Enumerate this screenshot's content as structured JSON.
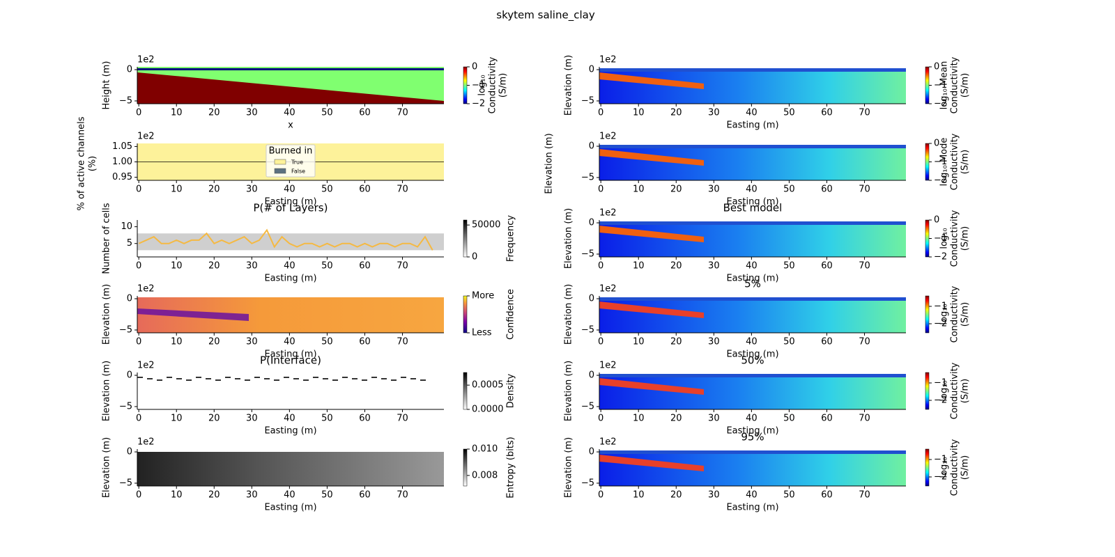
{
  "title": "skytem saline_clay",
  "chart_data": [
    {
      "type": "heatmap",
      "cmap": "jet",
      "ylabel": "Height (m)",
      "xlabel": "x",
      "offset_text": "1e2",
      "xlim": [
        -0.4,
        81
      ],
      "xticks": [
        0,
        10,
        20,
        30,
        40,
        50,
        60,
        70
      ],
      "ylim": [
        -5.45,
        0.45
      ],
      "yticks": [
        0,
        {
          "value": -5,
          "label": "−5"
        }
      ],
      "clim": [
        -2,
        0
      ],
      "cticks": [
        0,
        {
          "value": -1,
          "label": "−1"
        },
        {
          "value": -2,
          "label": "−2"
        }
      ],
      "clabel": [
        "log₁₀",
        "Conductivity",
        "(S/m)"
      ]
    },
    {
      "type": "heatmap",
      "cmap": "burned",
      "ylabel": [
        "% of active channels",
        "(%)"
      ],
      "xlabel": "Easting (m)",
      "offset_text": "1e2",
      "xlim": [
        -0.4,
        81
      ],
      "xticks": [
        0,
        10,
        20,
        30,
        40,
        50,
        60,
        70
      ],
      "ylim": [
        0.94,
        1.06
      ],
      "yticks": [
        {
          "value": 0.95,
          "label": "0.95"
        },
        {
          "value": 1.0,
          "label": "1.00"
        },
        {
          "value": 1.05,
          "label": "1.05"
        }
      ],
      "legend": {
        "title": "Burned in",
        "entries": [
          {
            "name": "True",
            "color": "#fdf29a"
          },
          {
            "name": "False",
            "color": "#5d7180"
          }
        ]
      }
    },
    {
      "type": "line",
      "cmap": "Greys",
      "title": "P(# of Layers)",
      "ylabel": "Number of cells",
      "xlabel": "Easting (m)",
      "xlim": [
        -0.4,
        81
      ],
      "xticks": [
        0,
        10,
        20,
        30,
        40,
        50,
        60,
        70
      ],
      "ylim": [
        1,
        12
      ],
      "yticks": [
        5,
        10
      ],
      "clim": [
        0,
        57800
      ],
      "cticks": [
        0,
        50000
      ],
      "clabel": [
        "Frequency"
      ],
      "color": "#f5b942",
      "x": [
        0,
        2,
        4,
        6,
        8,
        10,
        12,
        14,
        16,
        18,
        20,
        22,
        24,
        26,
        28,
        30,
        32,
        34,
        36,
        38,
        40,
        42,
        44,
        46,
        48,
        50,
        52,
        54,
        56,
        58,
        60,
        62,
        64,
        66,
        68,
        70,
        72,
        74,
        76,
        78
      ],
      "values": [
        5,
        6,
        7,
        5,
        5,
        6,
        5,
        6,
        6,
        8,
        5,
        6,
        5,
        6,
        7,
        5,
        6,
        9,
        4,
        7,
        5,
        4,
        5,
        5,
        4,
        5,
        4,
        5,
        5,
        4,
        5,
        4,
        5,
        5,
        4,
        5,
        5,
        4,
        7,
        3
      ]
    },
    {
      "type": "heatmap",
      "cmap": "plasma",
      "ylabel": "Elevation (m)",
      "xlabel": "Easting (m)",
      "offset_text": "1e2",
      "xlim": [
        -0.4,
        81
      ],
      "xticks": [
        0,
        10,
        20,
        30,
        40,
        50,
        60,
        70
      ],
      "ylim": [
        -5.45,
        0.45
      ],
      "yticks": [
        0,
        {
          "value": -5,
          "label": "−5"
        }
      ],
      "clim": [
        0,
        1
      ],
      "cticks": [
        {
          "value": 1,
          "label": "More"
        },
        {
          "value": 0,
          "label": "Less"
        }
      ],
      "clabel": [
        "Confidence"
      ]
    },
    {
      "type": "heatmap",
      "cmap": "Greys",
      "title": "P(Interface)",
      "ylabel": "Elevation (m)",
      "xlabel": "Easting (m)",
      "offset_text": "1e2",
      "xlim": [
        -0.4,
        81
      ],
      "xticks": [
        0,
        10,
        20,
        30,
        40,
        50,
        60,
        70
      ],
      "ylim": [
        -5.45,
        0.45
      ],
      "yticks": [
        0,
        {
          "value": -5,
          "label": "−5"
        }
      ],
      "clim": [
        0,
        0.00076
      ],
      "cticks": [
        {
          "value": 0,
          "label": "0.0000"
        },
        {
          "value": 0.0005,
          "label": "0.0005"
        }
      ],
      "clabel": [
        "Density"
      ]
    },
    {
      "type": "heatmap",
      "cmap": "Greys",
      "ylabel": "Elevation (m)",
      "xlabel": "Easting (m)",
      "offset_text": "1e2",
      "xlim": [
        -0.4,
        81
      ],
      "xticks": [
        0,
        10,
        20,
        30,
        40,
        50,
        60,
        70
      ],
      "ylim": [
        -5.45,
        0.45
      ],
      "yticks": [
        0,
        {
          "value": -5,
          "label": "−5"
        }
      ],
      "clim": [
        0.0072,
        0.01
      ],
      "cticks": [
        {
          "value": 0.01,
          "label": "0.010"
        },
        {
          "value": 0.008,
          "label": "0.008"
        }
      ],
      "clabel": [
        "Entropy (bits)"
      ]
    },
    {
      "type": "heatmap",
      "cmap": "jet",
      "ylabel": "Elevation (m)",
      "xlabel": "Easting (m)",
      "offset_text": "1e2",
      "xlim": [
        -0.4,
        81
      ],
      "xticks": [
        0,
        10,
        20,
        30,
        40,
        50,
        60,
        70
      ],
      "ylim": [
        -5.45,
        0.45
      ],
      "yticks": [
        0,
        {
          "value": -5,
          "label": "−5"
        }
      ],
      "clim": [
        -2,
        0
      ],
      "cticks": [
        0,
        {
          "value": -1,
          "label": "−1"
        },
        {
          "value": -2,
          "label": "−2"
        }
      ],
      "clabel": [
        "log₁₀ Mean",
        "Conductivity",
        "(S/m)"
      ]
    },
    {
      "type": "heatmap",
      "cmap": "jet",
      "ylabel": "Elevation (m)",
      "xlabel": "Easting (m)",
      "offset_text": "1e2",
      "xlim": [
        -0.4,
        81
      ],
      "xticks": [
        0,
        10,
        20,
        30,
        40,
        50,
        60,
        70
      ],
      "ylim": [
        -5.45,
        0.45
      ],
      "yticks": [
        0,
        {
          "value": -5,
          "label": "−5"
        }
      ],
      "clim": [
        -2,
        0
      ],
      "cticks": [
        0,
        {
          "value": -1,
          "label": "−1"
        },
        {
          "value": -2,
          "label": "−2"
        }
      ],
      "clabel": [
        "log₁₀ Mode",
        "Conductivity",
        "(S/m)"
      ]
    },
    {
      "type": "heatmap",
      "cmap": "jet",
      "title": "Best model",
      "ylabel": "Elevation (m)",
      "xlabel": "Easting (m)",
      "offset_text": "1e2",
      "xlim": [
        -0.4,
        81
      ],
      "xticks": [
        0,
        10,
        20,
        30,
        40,
        50,
        60,
        70
      ],
      "ylim": [
        -5.45,
        0.45
      ],
      "yticks": [
        0,
        {
          "value": -5,
          "label": "−5"
        }
      ],
      "clim": [
        -2,
        0
      ],
      "cticks": [
        0,
        {
          "value": -1,
          "label": "−1"
        },
        {
          "value": -2,
          "label": "−2"
        }
      ],
      "clabel": [
        "log₁₀",
        "Conductivity",
        "(S/m)"
      ]
    },
    {
      "type": "heatmap",
      "cmap": "jet",
      "title": "5%",
      "ylabel": "Elevation (m)",
      "xlabel": "Easting (m)",
      "offset_text": "1e2",
      "xlim": [
        -0.4,
        81
      ],
      "xticks": [
        0,
        10,
        20,
        30,
        40,
        50,
        60,
        70
      ],
      "ylim": [
        -5.45,
        0.45
      ],
      "yticks": [
        0,
        {
          "value": -5,
          "label": "−5"
        }
      ],
      "clim": [
        -2.52,
        -0.4
      ],
      "cticks": [
        {
          "value": -1,
          "label": "−1"
        },
        {
          "value": -2,
          "label": "−2"
        }
      ],
      "clabel": [
        "log₁₀",
        "Conductivity",
        "(S/m)"
      ]
    },
    {
      "type": "heatmap",
      "cmap": "jet",
      "title": "50%",
      "ylabel": "Elevation (m)",
      "xlabel": "Easting (m)",
      "offset_text": "1e2",
      "xlim": [
        -0.4,
        81
      ],
      "xticks": [
        0,
        10,
        20,
        30,
        40,
        50,
        60,
        70
      ],
      "ylim": [
        -5.45,
        0.45
      ],
      "yticks": [
        0,
        {
          "value": -5,
          "label": "−5"
        }
      ],
      "clim": [
        -2.52,
        -0.4
      ],
      "cticks": [
        {
          "value": -1,
          "label": "−1"
        },
        {
          "value": -2,
          "label": "−2"
        }
      ],
      "clabel": [
        "log₁₀",
        "Conductivity",
        "(S/m)"
      ]
    },
    {
      "type": "heatmap",
      "cmap": "jet",
      "title": "95%",
      "ylabel": "Elevation (m)",
      "xlabel": "Easting (m)",
      "offset_text": "1e2",
      "xlim": [
        -0.4,
        81
      ],
      "xticks": [
        0,
        10,
        20,
        30,
        40,
        50,
        60,
        70
      ],
      "ylim": [
        -5.45,
        0.45
      ],
      "yticks": [
        0,
        {
          "value": -5,
          "label": "−5"
        }
      ],
      "clim": [
        -2.52,
        -0.4
      ],
      "cticks": [
        {
          "value": -1,
          "label": "−1"
        },
        {
          "value": -2,
          "label": "−2"
        }
      ],
      "clabel": [
        "log₁₀",
        "Conductivity",
        "(S/m)"
      ]
    }
  ]
}
